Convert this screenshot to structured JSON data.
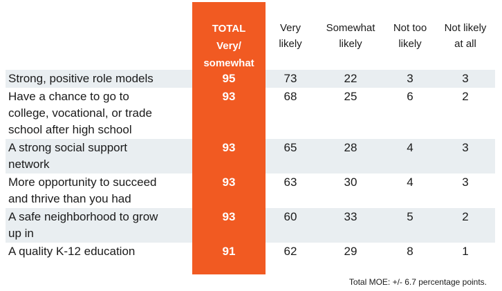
{
  "chart_data": {
    "type": "table",
    "columns": [
      {
        "key": "total",
        "lines": [
          "TOTAL",
          "Very/",
          "somewhat"
        ]
      },
      {
        "key": "very",
        "lines": [
          "Very",
          "likely"
        ]
      },
      {
        "key": "somewhat",
        "lines": [
          "Somewhat",
          "likely"
        ]
      },
      {
        "key": "nottoo",
        "lines": [
          "Not too",
          "likely"
        ]
      },
      {
        "key": "notatall",
        "lines": [
          "Not likely",
          "at all"
        ]
      }
    ],
    "rows": [
      {
        "label": [
          "Strong, positive role models"
        ],
        "total": 95,
        "very": 73,
        "somewhat": 22,
        "nottoo": 3,
        "notatall": 3
      },
      {
        "label": [
          "Have a chance to go to",
          "college, vocational, or trade",
          "school after high school"
        ],
        "total": 93,
        "very": 68,
        "somewhat": 25,
        "nottoo": 6,
        "notatall": 2
      },
      {
        "label": [
          "A strong social support",
          "network"
        ],
        "total": 93,
        "very": 65,
        "somewhat": 28,
        "nottoo": 4,
        "notatall": 3
      },
      {
        "label": [
          "More opportunity to succeed",
          "and thrive than you had"
        ],
        "total": 93,
        "very": 63,
        "somewhat": 30,
        "nottoo": 4,
        "notatall": 3
      },
      {
        "label": [
          "A safe neighborhood to grow",
          "up in"
        ],
        "total": 93,
        "very": 60,
        "somewhat": 33,
        "nottoo": 5,
        "notatall": 2
      },
      {
        "label": [
          "A quality K-12 education"
        ],
        "total": 91,
        "very": 62,
        "somewhat": 29,
        "nottoo": 8,
        "notatall": 1
      }
    ],
    "footnote": "Total MOE: +/- 6.7 percentage points.",
    "colors": {
      "total_column": "#f15a22",
      "band": "#e9eef1",
      "total_text": "#ffffff"
    }
  }
}
